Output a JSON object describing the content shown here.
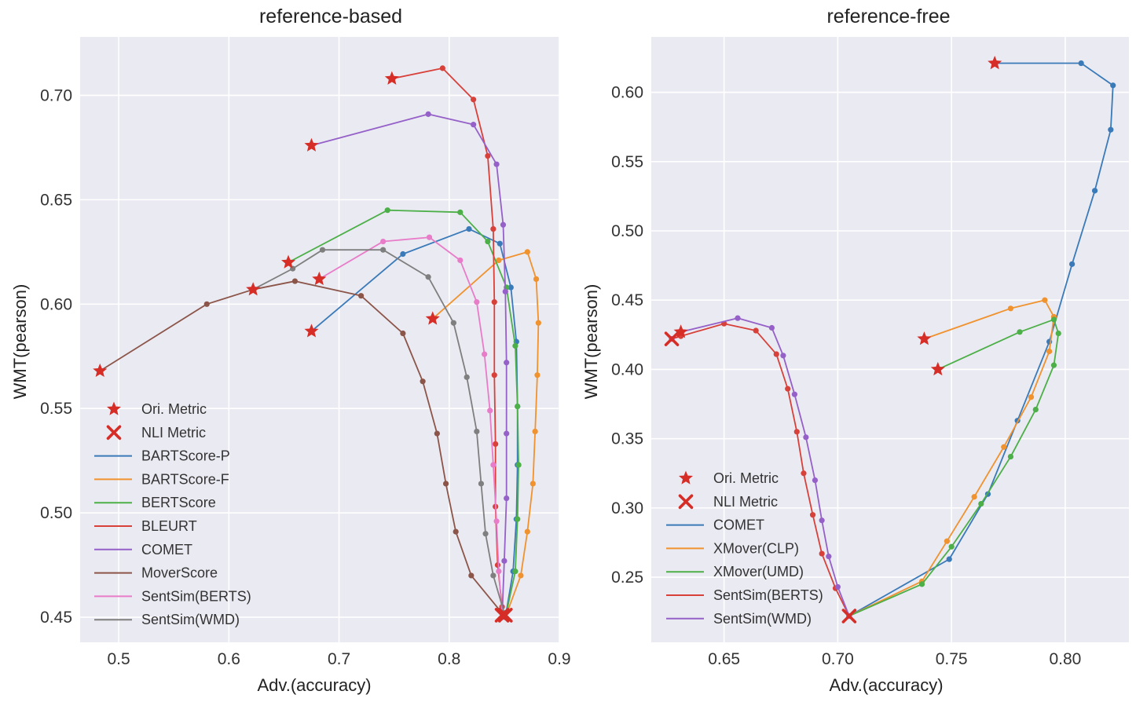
{
  "chart_data": [
    {
      "type": "line",
      "title": "reference-based",
      "xlabel": "Adv.(accuracy)",
      "ylabel": "WMT(pearson)",
      "xlim": [
        0.465,
        0.9
      ],
      "ylim": [
        0.438,
        0.728
      ],
      "xticks": [
        0.5,
        0.6,
        0.7,
        0.8,
        0.9
      ],
      "xtick_labels": [
        "0.5",
        "0.6",
        "0.7",
        "0.8",
        "0.9"
      ],
      "yticks": [
        0.45,
        0.5,
        0.55,
        0.6,
        0.65,
        0.7
      ],
      "ytick_labels": [
        "0.45",
        "0.50",
        "0.55",
        "0.60",
        "0.65",
        "0.70"
      ],
      "grid": true,
      "legend_position": "lower-left",
      "marker_legend": [
        {
          "label": "Ori. Metric",
          "marker": "star"
        },
        {
          "label": "NLI Metric",
          "marker": "x"
        }
      ],
      "series": [
        {
          "name": "BARTScore-P",
          "color": "#3a7ab8",
          "points": [
            [
              0.675,
              0.587
            ],
            [
              0.758,
              0.624
            ],
            [
              0.818,
              0.636
            ],
            [
              0.846,
              0.629
            ],
            [
              0.856,
              0.608
            ],
            [
              0.861,
              0.582
            ],
            [
              0.862,
              0.551
            ],
            [
              0.862,
              0.523
            ],
            [
              0.861,
              0.497
            ],
            [
              0.858,
              0.472
            ],
            [
              0.851,
              0.45
            ]
          ]
        },
        {
          "name": "BARTScore-F",
          "color": "#f0922e",
          "points": [
            [
              0.785,
              0.593
            ],
            [
              0.845,
              0.621
            ],
            [
              0.871,
              0.625
            ],
            [
              0.879,
              0.612
            ],
            [
              0.881,
              0.591
            ],
            [
              0.88,
              0.566
            ],
            [
              0.878,
              0.539
            ],
            [
              0.876,
              0.514
            ],
            [
              0.871,
              0.491
            ],
            [
              0.865,
              0.47
            ],
            [
              0.851,
              0.45
            ]
          ]
        },
        {
          "name": "BERTScore",
          "color": "#4caf47",
          "points": [
            [
              0.654,
              0.62
            ],
            [
              0.744,
              0.645
            ],
            [
              0.81,
              0.644
            ],
            [
              0.835,
              0.63
            ],
            [
              0.852,
              0.608
            ],
            [
              0.86,
              0.58
            ],
            [
              0.862,
              0.551
            ],
            [
              0.863,
              0.523
            ],
            [
              0.862,
              0.497
            ],
            [
              0.86,
              0.472
            ],
            [
              0.851,
              0.45
            ]
          ]
        },
        {
          "name": "BLEURT",
          "color": "#d8403a",
          "points": [
            [
              0.748,
              0.708
            ],
            [
              0.794,
              0.713
            ],
            [
              0.822,
              0.698
            ],
            [
              0.835,
              0.671
            ],
            [
              0.84,
              0.636
            ],
            [
              0.841,
              0.601
            ],
            [
              0.841,
              0.566
            ],
            [
              0.842,
              0.533
            ],
            [
              0.842,
              0.503
            ],
            [
              0.844,
              0.475
            ],
            [
              0.848,
              0.455
            ],
            [
              0.851,
              0.45
            ]
          ]
        },
        {
          "name": "COMET",
          "color": "#9560c8",
          "points": [
            [
              0.675,
              0.676
            ],
            [
              0.781,
              0.691
            ],
            [
              0.822,
              0.686
            ],
            [
              0.843,
              0.667
            ],
            [
              0.849,
              0.638
            ],
            [
              0.851,
              0.606
            ],
            [
              0.852,
              0.572
            ],
            [
              0.852,
              0.538
            ],
            [
              0.852,
              0.507
            ],
            [
              0.85,
              0.477
            ],
            [
              0.848,
              0.45
            ]
          ]
        },
        {
          "name": "MoverScore",
          "color": "#8c5549",
          "points": [
            [
              0.483,
              0.568
            ],
            [
              0.58,
              0.6
            ],
            [
              0.622,
              0.607
            ],
            [
              0.66,
              0.611
            ],
            [
              0.72,
              0.604
            ],
            [
              0.758,
              0.586
            ],
            [
              0.776,
              0.563
            ],
            [
              0.789,
              0.538
            ],
            [
              0.797,
              0.514
            ],
            [
              0.806,
              0.491
            ],
            [
              0.82,
              0.47
            ],
            [
              0.848,
              0.452
            ]
          ]
        },
        {
          "name": "SentSim(BERTS)",
          "color": "#e87cc8",
          "points": [
            [
              0.682,
              0.612
            ],
            [
              0.74,
              0.63
            ],
            [
              0.782,
              0.632
            ],
            [
              0.81,
              0.621
            ],
            [
              0.825,
              0.601
            ],
            [
              0.832,
              0.576
            ],
            [
              0.837,
              0.549
            ],
            [
              0.84,
              0.523
            ],
            [
              0.843,
              0.496
            ],
            [
              0.845,
              0.472
            ],
            [
              0.848,
              0.452
            ]
          ]
        },
        {
          "name": "SentSim(WMD)",
          "color": "#7f7f7f",
          "points": [
            [
              0.622,
              0.607
            ],
            [
              0.658,
              0.617
            ],
            [
              0.685,
              0.626
            ],
            [
              0.74,
              0.626
            ],
            [
              0.781,
              0.613
            ],
            [
              0.804,
              0.591
            ],
            [
              0.816,
              0.565
            ],
            [
              0.825,
              0.539
            ],
            [
              0.829,
              0.514
            ],
            [
              0.833,
              0.49
            ],
            [
              0.84,
              0.47
            ],
            [
              0.85,
              0.452
            ]
          ]
        }
      ],
      "ori_metric_points": [
        [
          0.748,
          0.708
        ],
        [
          0.675,
          0.676
        ],
        [
          0.654,
          0.62
        ],
        [
          0.682,
          0.612
        ],
        [
          0.622,
          0.607
        ],
        [
          0.785,
          0.593
        ],
        [
          0.675,
          0.587
        ],
        [
          0.483,
          0.568
        ]
      ],
      "nli_metric_points": [
        [
          0.848,
          0.451
        ],
        [
          0.851,
          0.451
        ]
      ]
    },
    {
      "type": "line",
      "title": "reference-free",
      "xlabel": "Adv.(accuracy)",
      "ylabel": "WMT(pearson)",
      "xlim": [
        0.618,
        0.828
      ],
      "ylim": [
        0.203,
        0.64
      ],
      "xticks": [
        0.65,
        0.7,
        0.75,
        0.8
      ],
      "xtick_labels": [
        "0.65",
        "0.70",
        "0.75",
        "0.80"
      ],
      "yticks": [
        0.25,
        0.3,
        0.35,
        0.4,
        0.45,
        0.5,
        0.55,
        0.6
      ],
      "ytick_labels": [
        "0.25",
        "0.30",
        "0.35",
        "0.40",
        "0.45",
        "0.50",
        "0.55",
        "0.60"
      ],
      "grid": true,
      "legend_position": "lower-left",
      "marker_legend": [
        {
          "label": "Ori. Metric",
          "marker": "star"
        },
        {
          "label": "NLI Metric",
          "marker": "x"
        }
      ],
      "series": [
        {
          "name": "COMET",
          "color": "#3a7ab8",
          "points": [
            [
              0.705,
              0.222
            ],
            [
              0.749,
              0.263
            ],
            [
              0.766,
              0.31
            ],
            [
              0.779,
              0.363
            ],
            [
              0.793,
              0.42
            ],
            [
              0.803,
              0.476
            ],
            [
              0.813,
              0.529
            ],
            [
              0.82,
              0.573
            ],
            [
              0.821,
              0.605
            ],
            [
              0.807,
              0.621
            ],
            [
              0.769,
              0.621
            ]
          ]
        },
        {
          "name": "XMover(CLP)",
          "color": "#f0922e",
          "points": [
            [
              0.705,
              0.222
            ],
            [
              0.737,
              0.247
            ],
            [
              0.748,
              0.276
            ],
            [
              0.76,
              0.308
            ],
            [
              0.773,
              0.344
            ],
            [
              0.785,
              0.38
            ],
            [
              0.793,
              0.413
            ],
            [
              0.795,
              0.438
            ],
            [
              0.791,
              0.45
            ],
            [
              0.776,
              0.444
            ],
            [
              0.738,
              0.422
            ]
          ]
        },
        {
          "name": "XMover(UMD)",
          "color": "#4caf47",
          "points": [
            [
              0.705,
              0.222
            ],
            [
              0.737,
              0.245
            ],
            [
              0.75,
              0.272
            ],
            [
              0.763,
              0.303
            ],
            [
              0.776,
              0.337
            ],
            [
              0.787,
              0.371
            ],
            [
              0.795,
              0.403
            ],
            [
              0.797,
              0.426
            ],
            [
              0.795,
              0.436
            ],
            [
              0.78,
              0.427
            ],
            [
              0.744,
              0.4
            ]
          ]
        },
        {
          "name": "SentSim(BERTS)",
          "color": "#d8403a",
          "points": [
            [
              0.627,
              0.422
            ],
            [
              0.631,
              0.424
            ],
            [
              0.65,
              0.433
            ],
            [
              0.664,
              0.428
            ],
            [
              0.673,
              0.411
            ],
            [
              0.678,
              0.386
            ],
            [
              0.682,
              0.355
            ],
            [
              0.685,
              0.325
            ],
            [
              0.689,
              0.295
            ],
            [
              0.693,
              0.267
            ],
            [
              0.699,
              0.242
            ],
            [
              0.705,
              0.222
            ]
          ]
        },
        {
          "name": "SentSim(WMD)",
          "color": "#9560c8",
          "points": [
            [
              0.627,
              0.422
            ],
            [
              0.631,
              0.427
            ],
            [
              0.656,
              0.437
            ],
            [
              0.671,
              0.43
            ],
            [
              0.676,
              0.41
            ],
            [
              0.681,
              0.382
            ],
            [
              0.686,
              0.351
            ],
            [
              0.69,
              0.32
            ],
            [
              0.693,
              0.291
            ],
            [
              0.696,
              0.265
            ],
            [
              0.7,
              0.243
            ],
            [
              0.705,
              0.222
            ]
          ]
        }
      ],
      "ori_metric_points": [
        [
          0.769,
          0.621
        ],
        [
          0.631,
          0.427
        ],
        [
          0.738,
          0.422
        ],
        [
          0.744,
          0.4
        ]
      ],
      "nli_metric_points": [
        [
          0.627,
          0.422
        ],
        [
          0.705,
          0.222
        ]
      ]
    }
  ]
}
